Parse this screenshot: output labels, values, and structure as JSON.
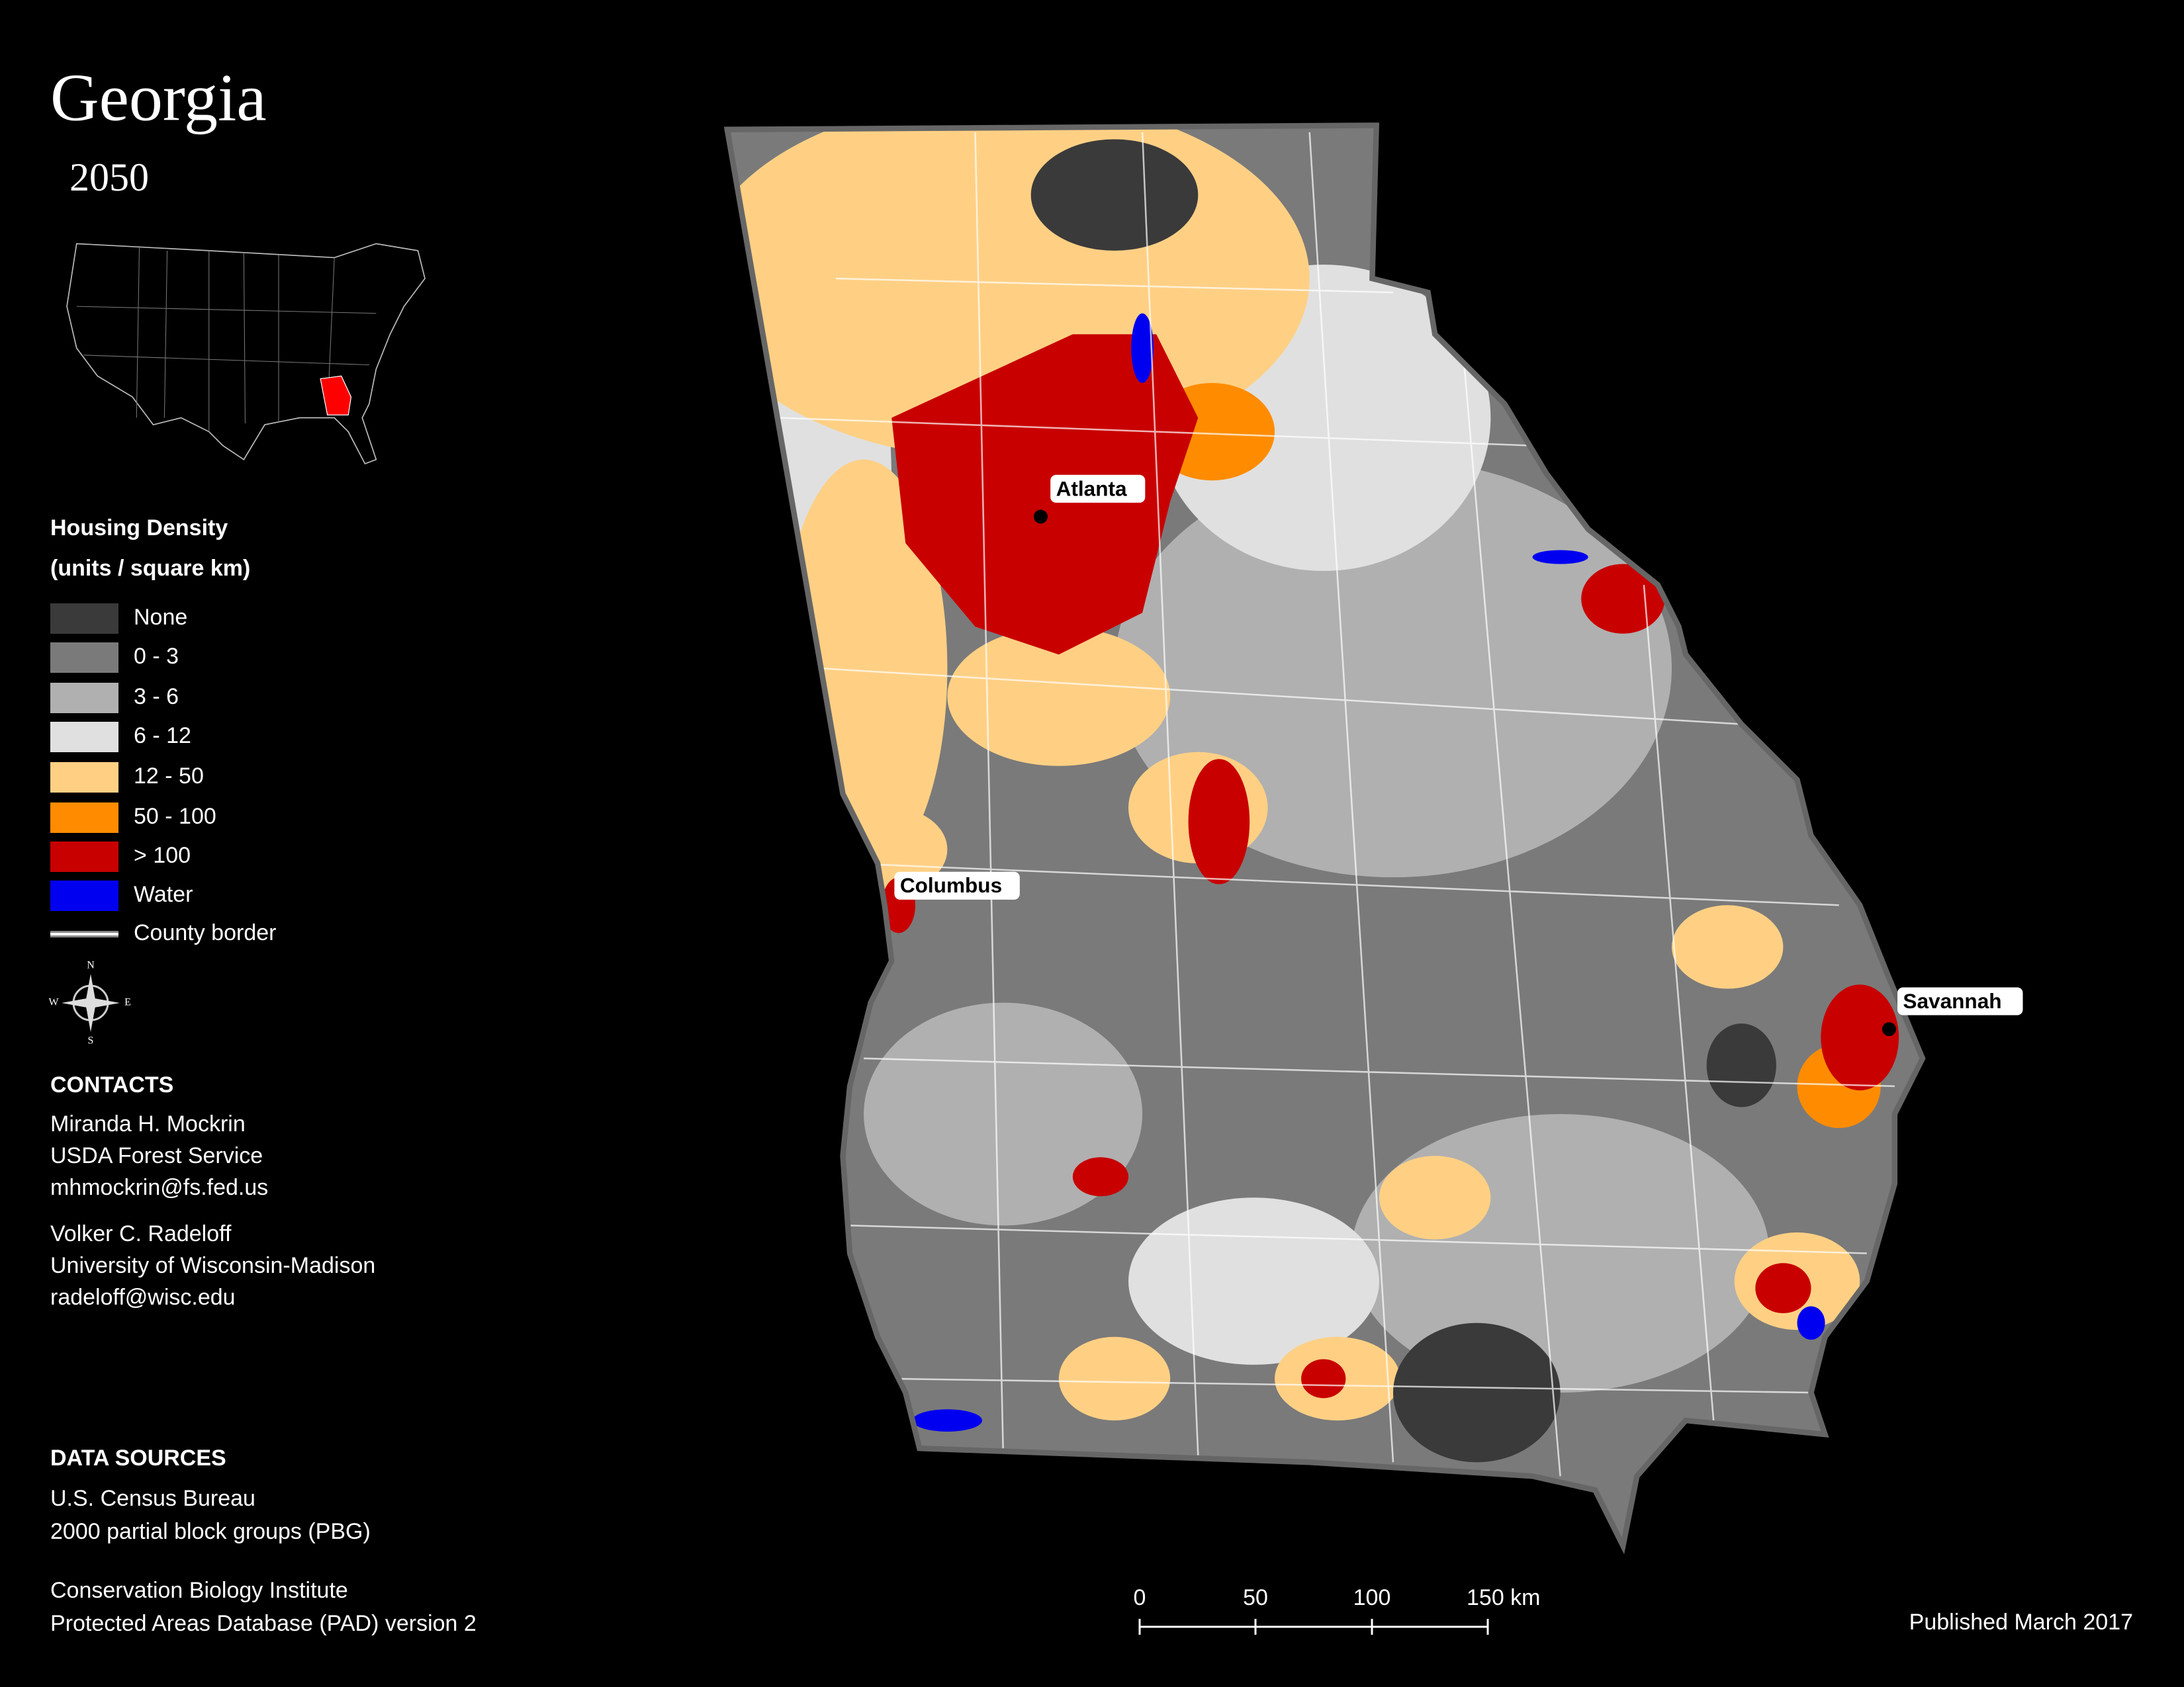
{
  "header": {
    "title": "Georgia",
    "subtitle": "2050"
  },
  "legend": {
    "title": "Housing Density",
    "subtitle": "(units / square km)",
    "items": [
      {
        "label": "None",
        "color": "#3a3a3a"
      },
      {
        "label": "0 - 3",
        "color": "#7a7a7a"
      },
      {
        "label": "3 - 6",
        "color": "#b0b0b0"
      },
      {
        "label": "6 - 12",
        "color": "#e0e0e0"
      },
      {
        "label": "12 - 50",
        "color": "#ffd084"
      },
      {
        "label": "50 - 100",
        "color": "#ff8c00"
      },
      {
        "label": "> 100",
        "color": "#c80000"
      },
      {
        "label": "Water",
        "color": "#0000f0"
      },
      {
        "label": "County border",
        "color": "#ffffff",
        "symbol": "line"
      }
    ]
  },
  "compass": {
    "n": "N",
    "s": "S",
    "e": "E",
    "w": "W"
  },
  "contacts": {
    "title": "CONTACTS",
    "people": [
      [
        "Miranda H. Mockrin",
        "USDA Forest Service",
        "mhmockrin@fs.fed.us"
      ],
      [
        "Volker C. Radeloff",
        "University of Wisconsin-Madison",
        "radeloff@wisc.edu"
      ]
    ]
  },
  "data_sources": {
    "title": "DATA SOURCES",
    "entries": [
      [
        "U.S. Census Bureau",
        "2000 partial block groups (PBG)"
      ],
      [
        "Conservation Biology Institute",
        "Protected Areas Database (PAD) version 2"
      ]
    ]
  },
  "cities": [
    "Atlanta",
    "Columbus",
    "Savannah"
  ],
  "scale_bar": [
    "0",
    "50",
    "100",
    "150 km"
  ],
  "published": "Published March 2017"
}
